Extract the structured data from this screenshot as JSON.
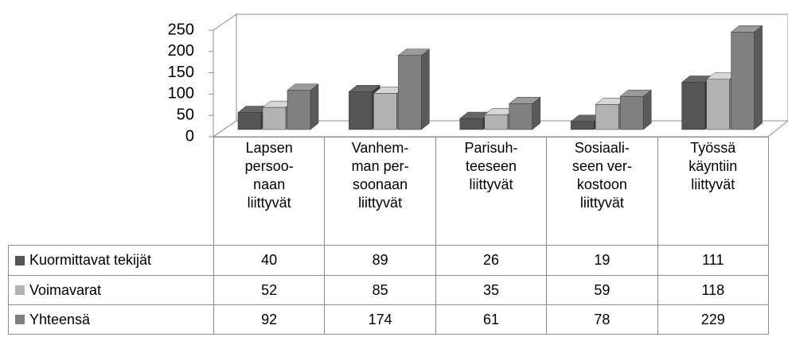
{
  "chart_data": {
    "type": "bar3d",
    "categories": [
      "Lapsen\npersoo-\nnaan\nliittyvät",
      "Vanhem-\nman per-\nsoonaan\nliittyvät",
      "Parisuh-\nteeseen\nliittyvät",
      "Sosiaali-\nseen ver-\nkostoon\nliittyvät",
      "Työssä\nkäyntiin\nliittyvät"
    ],
    "series": [
      {
        "name": "Kuormittavat tekijät",
        "color": "#555555",
        "values": [
          40,
          89,
          26,
          19,
          111
        ]
      },
      {
        "name": "Voimavarat",
        "color": "#b3b3b3",
        "values": [
          52,
          85,
          35,
          59,
          118
        ]
      },
      {
        "name": "Yhteensä",
        "color": "#808080",
        "values": [
          92,
          174,
          61,
          78,
          229
        ]
      }
    ],
    "ylim": [
      0,
      250
    ],
    "yticks": [
      0,
      50,
      100,
      150,
      200,
      250
    ],
    "grid": false,
    "data_table": true
  }
}
